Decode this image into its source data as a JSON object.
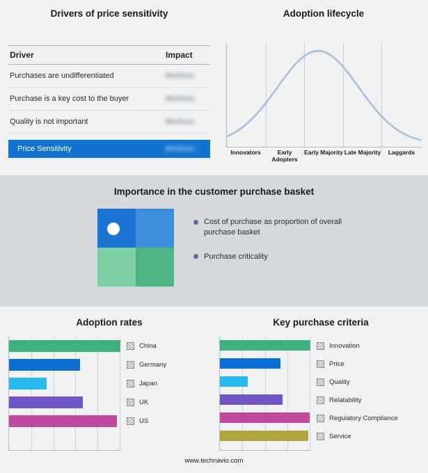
{
  "footer": {
    "url": "www.technavio.com"
  },
  "drivers": {
    "title": "Drivers of price sensitivity",
    "headers": [
      "Driver",
      "Impact"
    ],
    "rows": [
      {
        "driver": "Purchases are undifferentiated",
        "impact": "Medium"
      },
      {
        "driver": "Purchase is a key cost to the buyer",
        "impact": "Medium"
      },
      {
        "driver": "Quality is not important",
        "impact": "Medium"
      }
    ],
    "highlight": {
      "label": "Price Sensitivity",
      "impact": "Medium"
    },
    "highlight_color": "#1273cf",
    "impact_values_redacted": true
  },
  "lifecycle": {
    "title": "Adoption lifecycle",
    "curve_color": "#a7bedb"
  },
  "basket": {
    "title": "Importance in the customer purchase basket",
    "bullets": [
      "Cost of purchase as proportion of overall purchase basket",
      "Purchase criticality"
    ],
    "bullet_color": "#51719b",
    "quadrants": {
      "top_left": "#1b74d2",
      "top_right": "#3e8ede",
      "bottom_left": "#7ecfa4",
      "bottom_right": "#4fb585"
    }
  },
  "adoption": {
    "title": "Adoption rates"
  },
  "criteria": {
    "title": "Key purchase criteria"
  },
  "chart_data": [
    {
      "type": "line",
      "title": "Adoption lifecycle",
      "shape": "bell-curve",
      "peak": 0.47,
      "sigma": 0.21,
      "x_categories": [
        "Innovators",
        "Early Adopters",
        "Early Majority",
        "Late Majority",
        "Laggards"
      ],
      "grid": "vertical-separators",
      "legend": "none"
    },
    {
      "type": "bar",
      "title": "Adoption rates",
      "orientation": "horizontal",
      "categories": [
        "China",
        "Germany",
        "Japan",
        "UK",
        "US"
      ],
      "values": [
        100,
        64,
        34,
        66,
        97
      ],
      "xlim": [
        0,
        100
      ],
      "colors": [
        "#3fb27c",
        "#0d6fd2",
        "#29b7ee",
        "#7356c5",
        "#c0499c"
      ],
      "grid": "vertical",
      "legend_position": "right"
    },
    {
      "type": "bar",
      "title": "Key purchase criteria",
      "orientation": "horizontal",
      "categories": [
        "Innovation",
        "Price",
        "Quality",
        "Relatability",
        "Regulatory Compliance",
        "Service"
      ],
      "values": [
        100,
        67,
        31,
        69,
        99,
        98
      ],
      "xlim": [
        0,
        100
      ],
      "colors": [
        "#3fb27c",
        "#0d6fd2",
        "#29b7ee",
        "#7356c5",
        "#c0499c",
        "#b1a43c"
      ],
      "grid": "vertical",
      "legend_position": "right"
    }
  ]
}
